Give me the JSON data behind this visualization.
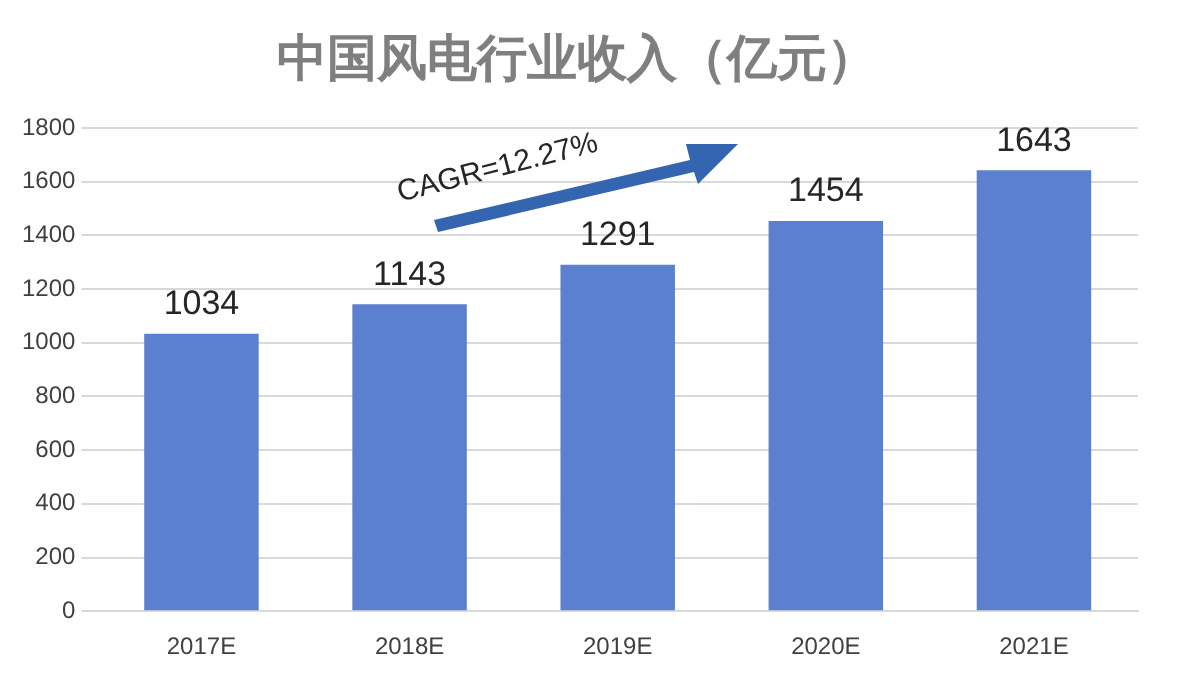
{
  "chart_data": {
    "type": "bar",
    "title": "中国风电行业收入（亿元）",
    "categories": [
      "2017E",
      "2018E",
      "2019E",
      "2020E",
      "2021E"
    ],
    "values": [
      1034,
      1143,
      1291,
      1454,
      1643
    ],
    "color": "#5b80cf",
    "ylim": [
      0,
      1800
    ],
    "yticks": [
      0,
      200,
      400,
      600,
      800,
      1000,
      1200,
      1400,
      1600,
      1800
    ],
    "grid": "y",
    "data_labels": true,
    "legend": false,
    "annotations": [
      "CAGR=12.27%"
    ]
  }
}
